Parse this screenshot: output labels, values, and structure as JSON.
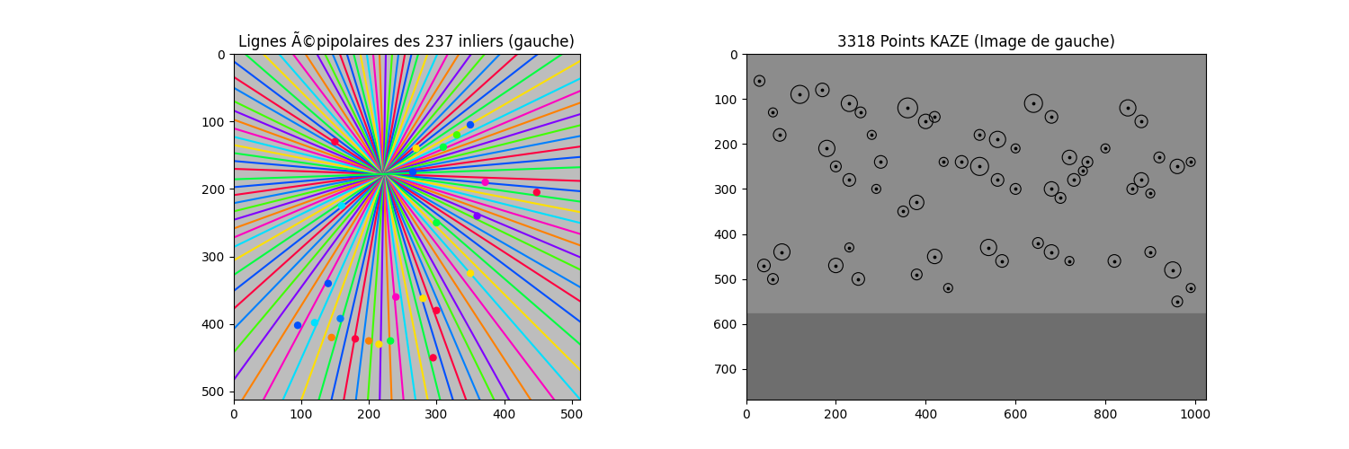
{
  "chart_data": [
    {
      "type": "epipolar_lines",
      "title": "Lignes Ã©pipolaires des 237 inliers (gauche)",
      "epipole": [
        222,
        178
      ],
      "lines": {
        "angles": [
          2,
          5,
          8,
          11,
          14,
          17,
          20,
          23,
          26,
          30,
          33,
          37,
          41,
          45,
          49,
          53,
          57,
          61,
          64,
          67,
          70,
          73,
          76,
          79,
          82,
          85,
          88,
          91,
          94,
          97,
          100,
          103,
          106,
          110,
          114,
          118,
          122,
          126,
          130,
          134,
          138,
          142,
          146,
          150,
          154,
          157,
          160,
          163,
          166,
          169,
          172,
          175,
          178
        ],
        "colors": [
          "#ff0040",
          "#0050ff",
          "#00ff40",
          "#ffe000",
          "#00e0ff",
          "#ff00c0",
          "#ff8000",
          "#8000ff",
          "#40ff00",
          "#0080ff",
          "#ff0040",
          "#0050ff",
          "#00ff40",
          "#ffe000",
          "#00e0ff",
          "#ff00c0",
          "#ff8000",
          "#8000ff",
          "#40ff00",
          "#0080ff",
          "#ff0040",
          "#0050ff",
          "#00ff40",
          "#ffe000",
          "#00e0ff",
          "#ff00c0",
          "#ff8000",
          "#8000ff",
          "#40ff00",
          "#0080ff",
          "#ff0040",
          "#0050ff",
          "#00ff40",
          "#ffe000",
          "#00e0ff",
          "#ff00c0",
          "#ff8000",
          "#8000ff",
          "#40ff00",
          "#0080ff",
          "#ff0040",
          "#0050ff",
          "#00ff40",
          "#ffe000",
          "#00e0ff",
          "#ff00c0",
          "#ff8000",
          "#8000ff",
          "#40ff00",
          "#0080ff",
          "#ff0040",
          "#0050ff",
          "#00ff40"
        ]
      },
      "points": {
        "x": [
          95,
          120,
          158,
          180,
          200,
          215,
          232,
          280,
          300,
          240,
          270,
          310,
          330,
          350,
          372,
          448,
          360,
          300,
          150,
          140,
          145,
          265,
          160,
          350,
          295
        ],
        "y": [
          402,
          398,
          392,
          422,
          425,
          430,
          425,
          362,
          380,
          360,
          140,
          138,
          120,
          105,
          190,
          205,
          240,
          250,
          130,
          340,
          420,
          175,
          225,
          325,
          450
        ],
        "colors": [
          "#0050ff",
          "#00e0ff",
          "#0080ff",
          "#ff0040",
          "#ff8000",
          "#ffe000",
          "#00ff40",
          "#ffe000",
          "#ff0040",
          "#ff00c0",
          "#ffe000",
          "#00ff40",
          "#40ff00",
          "#0050ff",
          "#ff00c0",
          "#ff0040",
          "#8000ff",
          "#00ff40",
          "#ff0040",
          "#0050ff",
          "#ff8000",
          "#0050ff",
          "#00e0ff",
          "#ffe000",
          "#ff0040"
        ]
      },
      "xlim": [
        0,
        512
      ],
      "ylim": [
        512,
        0
      ],
      "xticks": [
        0,
        100,
        200,
        300,
        400,
        500
      ],
      "yticks": [
        0,
        100,
        200,
        300,
        400,
        500
      ]
    },
    {
      "type": "keypoints",
      "title": "3318 Points KAZE (Image de gauche)",
      "keypoints": {
        "x": [
          30,
          60,
          75,
          120,
          170,
          230,
          255,
          280,
          300,
          360,
          400,
          420,
          440,
          480,
          520,
          560,
          600,
          640,
          680,
          720,
          760,
          800,
          850,
          880,
          920,
          960,
          990,
          180,
          200,
          230,
          290,
          350,
          380,
          520,
          560,
          600,
          680,
          700,
          730,
          750,
          860,
          880,
          900,
          40,
          60,
          80,
          200,
          230,
          250,
          380,
          420,
          450,
          540,
          570,
          650,
          680,
          720,
          820,
          900,
          950,
          960,
          990
        ],
        "y": [
          60,
          130,
          180,
          90,
          80,
          110,
          130,
          180,
          240,
          120,
          150,
          140,
          240,
          240,
          180,
          190,
          210,
          110,
          140,
          230,
          240,
          210,
          120,
          150,
          230,
          250,
          240,
          210,
          250,
          280,
          300,
          350,
          330,
          250,
          280,
          300,
          300,
          320,
          280,
          260,
          300,
          280,
          310,
          470,
          500,
          440,
          470,
          430,
          500,
          490,
          450,
          520,
          430,
          460,
          420,
          440,
          460,
          460,
          440,
          480,
          550,
          520
        ],
        "radius": [
          12,
          10,
          14,
          20,
          15,
          18,
          12,
          10,
          14,
          22,
          16,
          12,
          10,
          14,
          12,
          18,
          10,
          20,
          14,
          16,
          12,
          10,
          18,
          14,
          12,
          16,
          10,
          18,
          12,
          14,
          10,
          12,
          16,
          20,
          14,
          12,
          16,
          12,
          14,
          10,
          12,
          16,
          10,
          14,
          12,
          18,
          16,
          10,
          14,
          12,
          16,
          10,
          18,
          14,
          12,
          16,
          10,
          14,
          12,
          18,
          12,
          10
        ]
      },
      "xlim": [
        0,
        1024
      ],
      "ylim": [
        768,
        0
      ],
      "xticks": [
        0,
        200,
        400,
        600,
        800,
        1000
      ],
      "yticks": [
        0,
        100,
        200,
        300,
        400,
        500,
        600,
        700
      ]
    }
  ]
}
